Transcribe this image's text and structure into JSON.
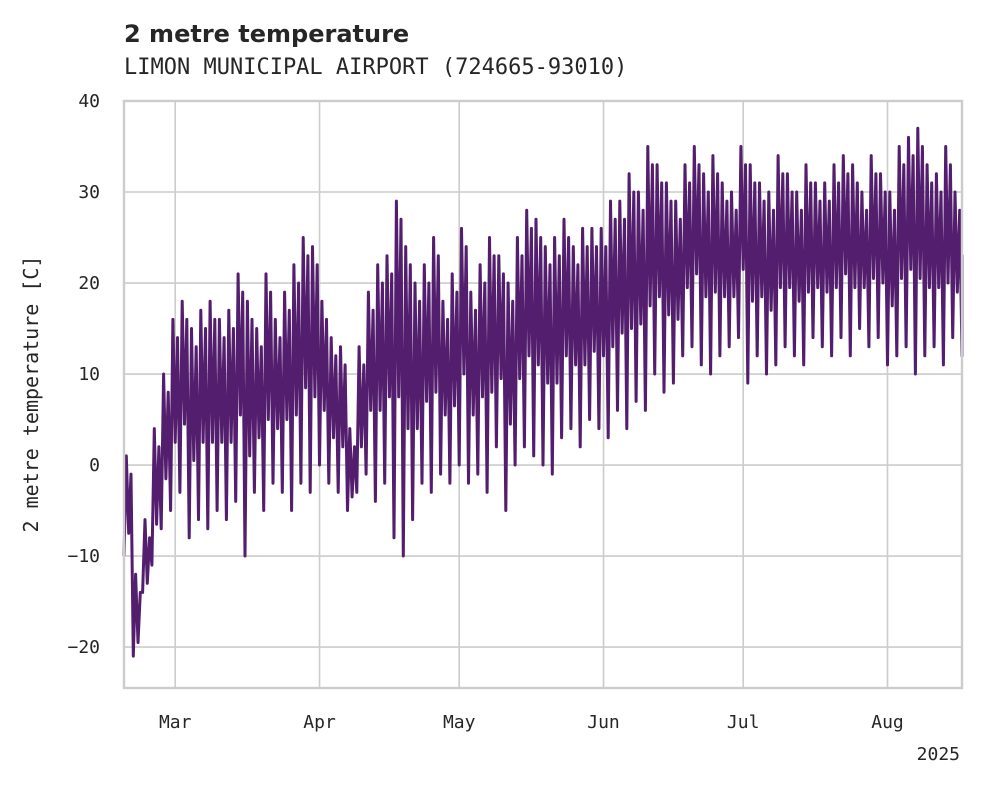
{
  "chart_data": {
    "type": "line",
    "title": "2 metre temperature",
    "subtitle": "LIMON MUNICIPAL AIRPORT (724665-93010)",
    "xlabel": "",
    "ylabel": "2 metre temperature [C]",
    "x_tick_labels": [
      "Mar",
      "Apr",
      "May",
      "Jun",
      "Jul",
      "Aug"
    ],
    "x_year_label": "2025",
    "x_range": [
      "2025-02-18",
      "2025-08-17"
    ],
    "y_ticks": [
      -20,
      -10,
      0,
      10,
      20,
      30,
      40
    ],
    "ylim": [
      -24.5,
      40
    ],
    "grid": true,
    "line_color": "#541e6e",
    "series": [
      {
        "x": [
          "2025-02-18",
          "2025-02-20",
          "2025-02-22",
          "2025-02-24",
          "2025-02-26",
          "2025-02-28",
          "2025-03-02",
          "2025-03-04",
          "2025-03-06",
          "2025-03-08",
          "2025-03-10",
          "2025-03-12",
          "2025-03-14",
          "2025-03-16",
          "2025-03-18",
          "2025-03-20",
          "2025-03-22",
          "2025-03-24",
          "2025-03-26",
          "2025-03-28",
          "2025-03-30",
          "2025-04-01",
          "2025-04-03",
          "2025-04-05",
          "2025-04-07",
          "2025-04-09",
          "2025-04-11",
          "2025-04-13",
          "2025-04-15",
          "2025-04-17",
          "2025-04-19",
          "2025-04-21",
          "2025-04-23",
          "2025-04-25",
          "2025-04-27",
          "2025-04-29",
          "2025-05-01",
          "2025-05-03",
          "2025-05-05",
          "2025-05-07",
          "2025-05-09",
          "2025-05-11",
          "2025-05-13",
          "2025-05-15",
          "2025-05-17",
          "2025-05-19",
          "2025-05-21",
          "2025-05-23",
          "2025-05-25",
          "2025-05-27",
          "2025-05-29",
          "2025-05-31",
          "2025-06-02",
          "2025-06-04",
          "2025-06-06",
          "2025-06-08",
          "2025-06-10",
          "2025-06-12",
          "2025-06-14",
          "2025-06-16",
          "2025-06-18",
          "2025-06-20",
          "2025-06-22",
          "2025-06-24",
          "2025-06-26",
          "2025-06-28",
          "2025-06-30",
          "2025-07-02",
          "2025-07-04",
          "2025-07-06",
          "2025-07-08",
          "2025-07-10",
          "2025-07-12",
          "2025-07-14",
          "2025-07-16",
          "2025-07-18",
          "2025-07-20",
          "2025-07-22",
          "2025-07-24",
          "2025-07-26",
          "2025-07-28",
          "2025-07-30",
          "2025-08-01",
          "2025-08-03",
          "2025-08-05",
          "2025-08-07",
          "2025-08-09",
          "2025-08-11",
          "2025-08-13",
          "2025-08-15",
          "2025-08-17"
        ],
        "low": [
          -10,
          -21,
          -14,
          -11,
          -7,
          -5,
          -3,
          -8,
          -6,
          -7,
          -5,
          -6,
          -4,
          -10,
          -3,
          -5,
          -2,
          -3,
          -5,
          -2,
          -3,
          0,
          -2,
          -3,
          -5,
          -3,
          -1,
          -4,
          -2,
          -8,
          -10,
          -6,
          -2,
          -3,
          -1,
          -2,
          0,
          -2,
          -1,
          -3,
          2,
          -5,
          0,
          2,
          1,
          0,
          -1,
          3,
          4,
          2,
          5,
          4,
          3,
          6,
          4,
          7,
          6,
          10,
          8,
          9,
          12,
          13,
          11,
          10,
          12,
          13,
          14,
          9,
          12,
          10,
          11,
          13,
          12,
          11,
          14,
          13,
          12,
          14,
          12,
          15,
          13,
          14,
          11,
          12,
          13,
          10,
          12,
          13,
          11,
          14,
          12
        ],
        "high": [
          1,
          -12,
          -6,
          4,
          10,
          16,
          18,
          15,
          17,
          18,
          16,
          17,
          21,
          18,
          15,
          21,
          16,
          19,
          22,
          25,
          24,
          18,
          14,
          13,
          4,
          13,
          19,
          22,
          23,
          29,
          24,
          20,
          22,
          25,
          18,
          21,
          26,
          19,
          22,
          25,
          23,
          20,
          25,
          28,
          27,
          24,
          25,
          27,
          24,
          26,
          26,
          26,
          29,
          29,
          32,
          30,
          35,
          33,
          31,
          29,
          33,
          35,
          32,
          34,
          31,
          30,
          35,
          33,
          31,
          30,
          34,
          32,
          30,
          33,
          31,
          31,
          33,
          34,
          33,
          30,
          34,
          32,
          30,
          35,
          36,
          37,
          33,
          32,
          35,
          30,
          23
        ]
      }
    ]
  }
}
